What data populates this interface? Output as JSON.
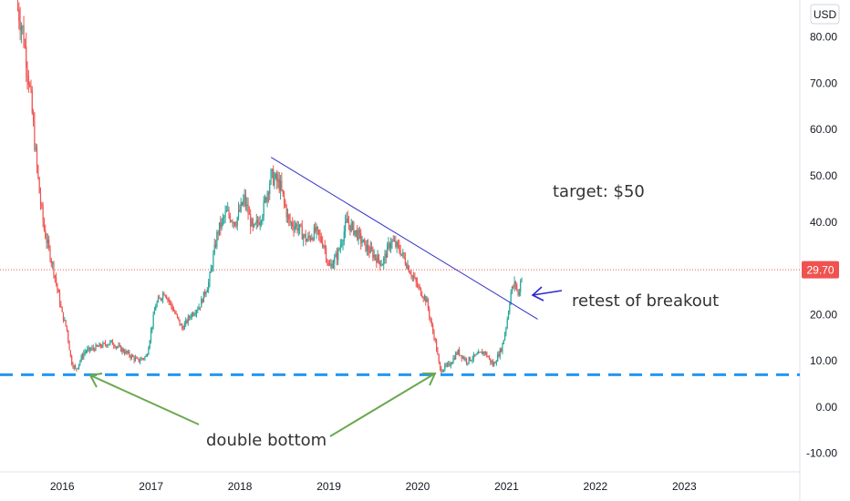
{
  "chart_data": {
    "type": "candlestick",
    "currency": "USD",
    "last_price": "29.70",
    "y_ticks": [
      "80.00",
      "70.00",
      "60.00",
      "50.00",
      "40.00",
      "30.00",
      "20.00",
      "10.00",
      "0.00",
      "-10.00"
    ],
    "y_tick_values": [
      80,
      70,
      60,
      50,
      40,
      30,
      20,
      10,
      0,
      -10
    ],
    "ylim": [
      -14,
      88
    ],
    "x_ticks": [
      "2016",
      "2017",
      "2018",
      "2019",
      "2020",
      "2021",
      "2022",
      "2023"
    ],
    "x_tick_values": [
      2016,
      2017,
      2018,
      2019,
      2020,
      2021,
      2022,
      2023
    ],
    "xlim": [
      2015.3,
      2024.3
    ],
    "grid": false,
    "colors": {
      "up": "#26a69a",
      "down": "#ef5350",
      "trendline": "#3030c8",
      "support": "#2196f3",
      "arrow_green": "#6aa84f",
      "last_price_badge": "#ef5350"
    },
    "price_path": [
      [
        2015.5,
        86
      ],
      [
        2015.55,
        82
      ],
      [
        2015.6,
        75
      ],
      [
        2015.65,
        66
      ],
      [
        2015.7,
        55
      ],
      [
        2015.75,
        45
      ],
      [
        2015.8,
        38
      ],
      [
        2015.85,
        34
      ],
      [
        2015.9,
        30
      ],
      [
        2015.95,
        25
      ],
      [
        2016.0,
        20
      ],
      [
        2016.05,
        17
      ],
      [
        2016.1,
        10
      ],
      [
        2016.15,
        8
      ],
      [
        2016.25,
        12
      ],
      [
        2016.4,
        13
      ],
      [
        2016.55,
        14
      ],
      [
        2016.7,
        12
      ],
      [
        2016.85,
        10
      ],
      [
        2016.95,
        11
      ],
      [
        2017.05,
        22
      ],
      [
        2017.15,
        25
      ],
      [
        2017.25,
        21
      ],
      [
        2017.35,
        17
      ],
      [
        2017.45,
        20
      ],
      [
        2017.55,
        22
      ],
      [
        2017.65,
        27
      ],
      [
        2017.75,
        38
      ],
      [
        2017.85,
        42
      ],
      [
        2017.95,
        40
      ],
      [
        2018.05,
        45
      ],
      [
        2018.15,
        38
      ],
      [
        2018.25,
        42
      ],
      [
        2018.35,
        50
      ],
      [
        2018.45,
        48
      ],
      [
        2018.55,
        40
      ],
      [
        2018.65,
        39
      ],
      [
        2018.75,
        36
      ],
      [
        2018.85,
        38
      ],
      [
        2018.95,
        35
      ],
      [
        2019.0,
        30
      ],
      [
        2019.1,
        33
      ],
      [
        2019.2,
        40
      ],
      [
        2019.3,
        38
      ],
      [
        2019.4,
        35
      ],
      [
        2019.5,
        33
      ],
      [
        2019.6,
        31
      ],
      [
        2019.7,
        36
      ],
      [
        2019.8,
        34
      ],
      [
        2019.9,
        30
      ],
      [
        2020.0,
        26
      ],
      [
        2020.1,
        23
      ],
      [
        2020.15,
        18
      ],
      [
        2020.2,
        14
      ],
      [
        2020.25,
        8
      ],
      [
        2020.35,
        9
      ],
      [
        2020.45,
        12
      ],
      [
        2020.55,
        10
      ],
      [
        2020.65,
        11
      ],
      [
        2020.75,
        12
      ],
      [
        2020.85,
        9
      ],
      [
        2020.95,
        13
      ],
      [
        2021.0,
        18
      ],
      [
        2021.05,
        25
      ],
      [
        2021.1,
        27
      ],
      [
        2021.13,
        24
      ],
      [
        2021.18,
        29.7
      ]
    ],
    "trendline": {
      "from": [
        2018.35,
        54
      ],
      "to": [
        2021.35,
        19
      ]
    },
    "support_level": 7,
    "annotations": {
      "target": "target: $50",
      "retest": "retest of breakout",
      "double_bottom": "double bottom"
    }
  }
}
